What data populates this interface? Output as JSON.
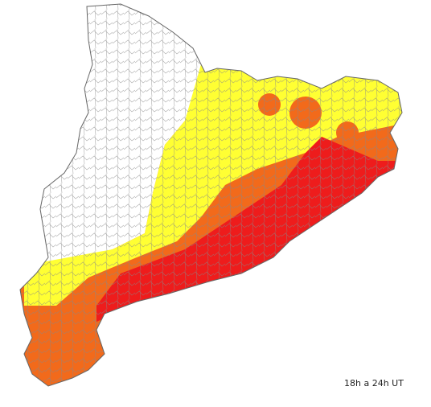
{
  "caption": "18h a 24h UT"
}
